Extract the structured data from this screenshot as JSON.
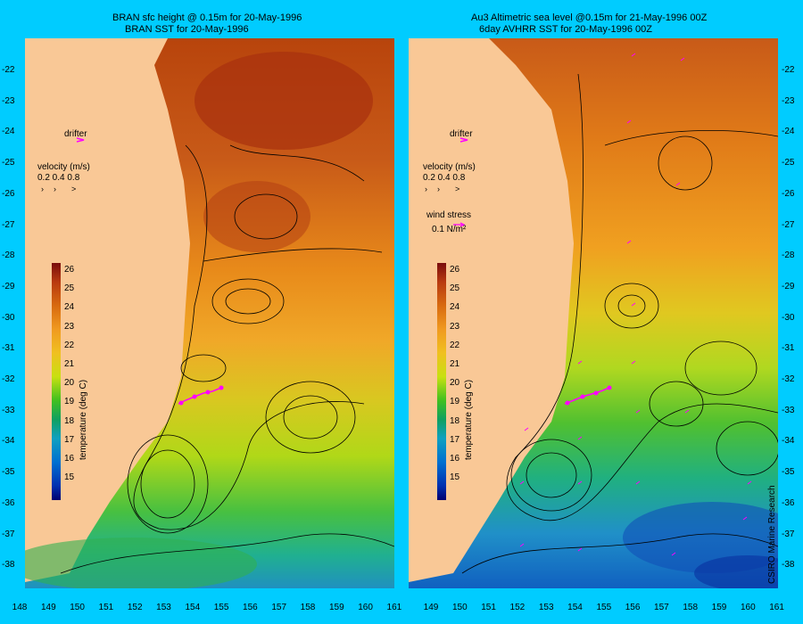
{
  "left_panel": {
    "title_line1": "BRAN sfc height @ 0.15m for 20-May-1996",
    "title_line2": "BRAN SST for 20-May-1996",
    "drifter_label": "drifter",
    "velocity_label": "velocity (m/s)",
    "velocity_scale": "0.2 0.4 0.8"
  },
  "right_panel": {
    "title_line1": "Au3 Altimetric sea level  @0.15m  for 21-May-1996 00Z",
    "title_line2": "6day AVHRR SST for 20-May-1996 00Z",
    "drifter_label": "drifter",
    "velocity_label": "velocity (m/s)",
    "velocity_scale": "0.2 0.4 0.8",
    "wind_label": "wind stress",
    "wind_scale": "0.1 N/m²",
    "credit": "CSIRO Marine Research"
  },
  "colorbar": {
    "label": "temperature (deg C)",
    "ticks": [
      "26",
      "25",
      "24",
      "23",
      "22",
      "21",
      "20",
      "19",
      "18",
      "17",
      "16",
      "15"
    ]
  },
  "axes": {
    "y_ticks": [
      "-22",
      "-23",
      "-24",
      "-25",
      "-26",
      "-27",
      "-28",
      "-29",
      "-30",
      "-31",
      "-32",
      "-33",
      "-34",
      "-35",
      "-36",
      "-37",
      "-38"
    ],
    "left_x_ticks": [
      "148",
      "149",
      "150",
      "151",
      "152",
      "153",
      "154",
      "155",
      "156",
      "157",
      "158",
      "159",
      "160",
      "161"
    ],
    "right_x_ticks": [
      "149",
      "150",
      "151",
      "152",
      "153",
      "154",
      "155",
      "156",
      "157",
      "158",
      "159",
      "160",
      "161"
    ]
  },
  "colors": {
    "background": "#00ccff",
    "land": "#f9c896",
    "drifter": "#ff00ff"
  }
}
